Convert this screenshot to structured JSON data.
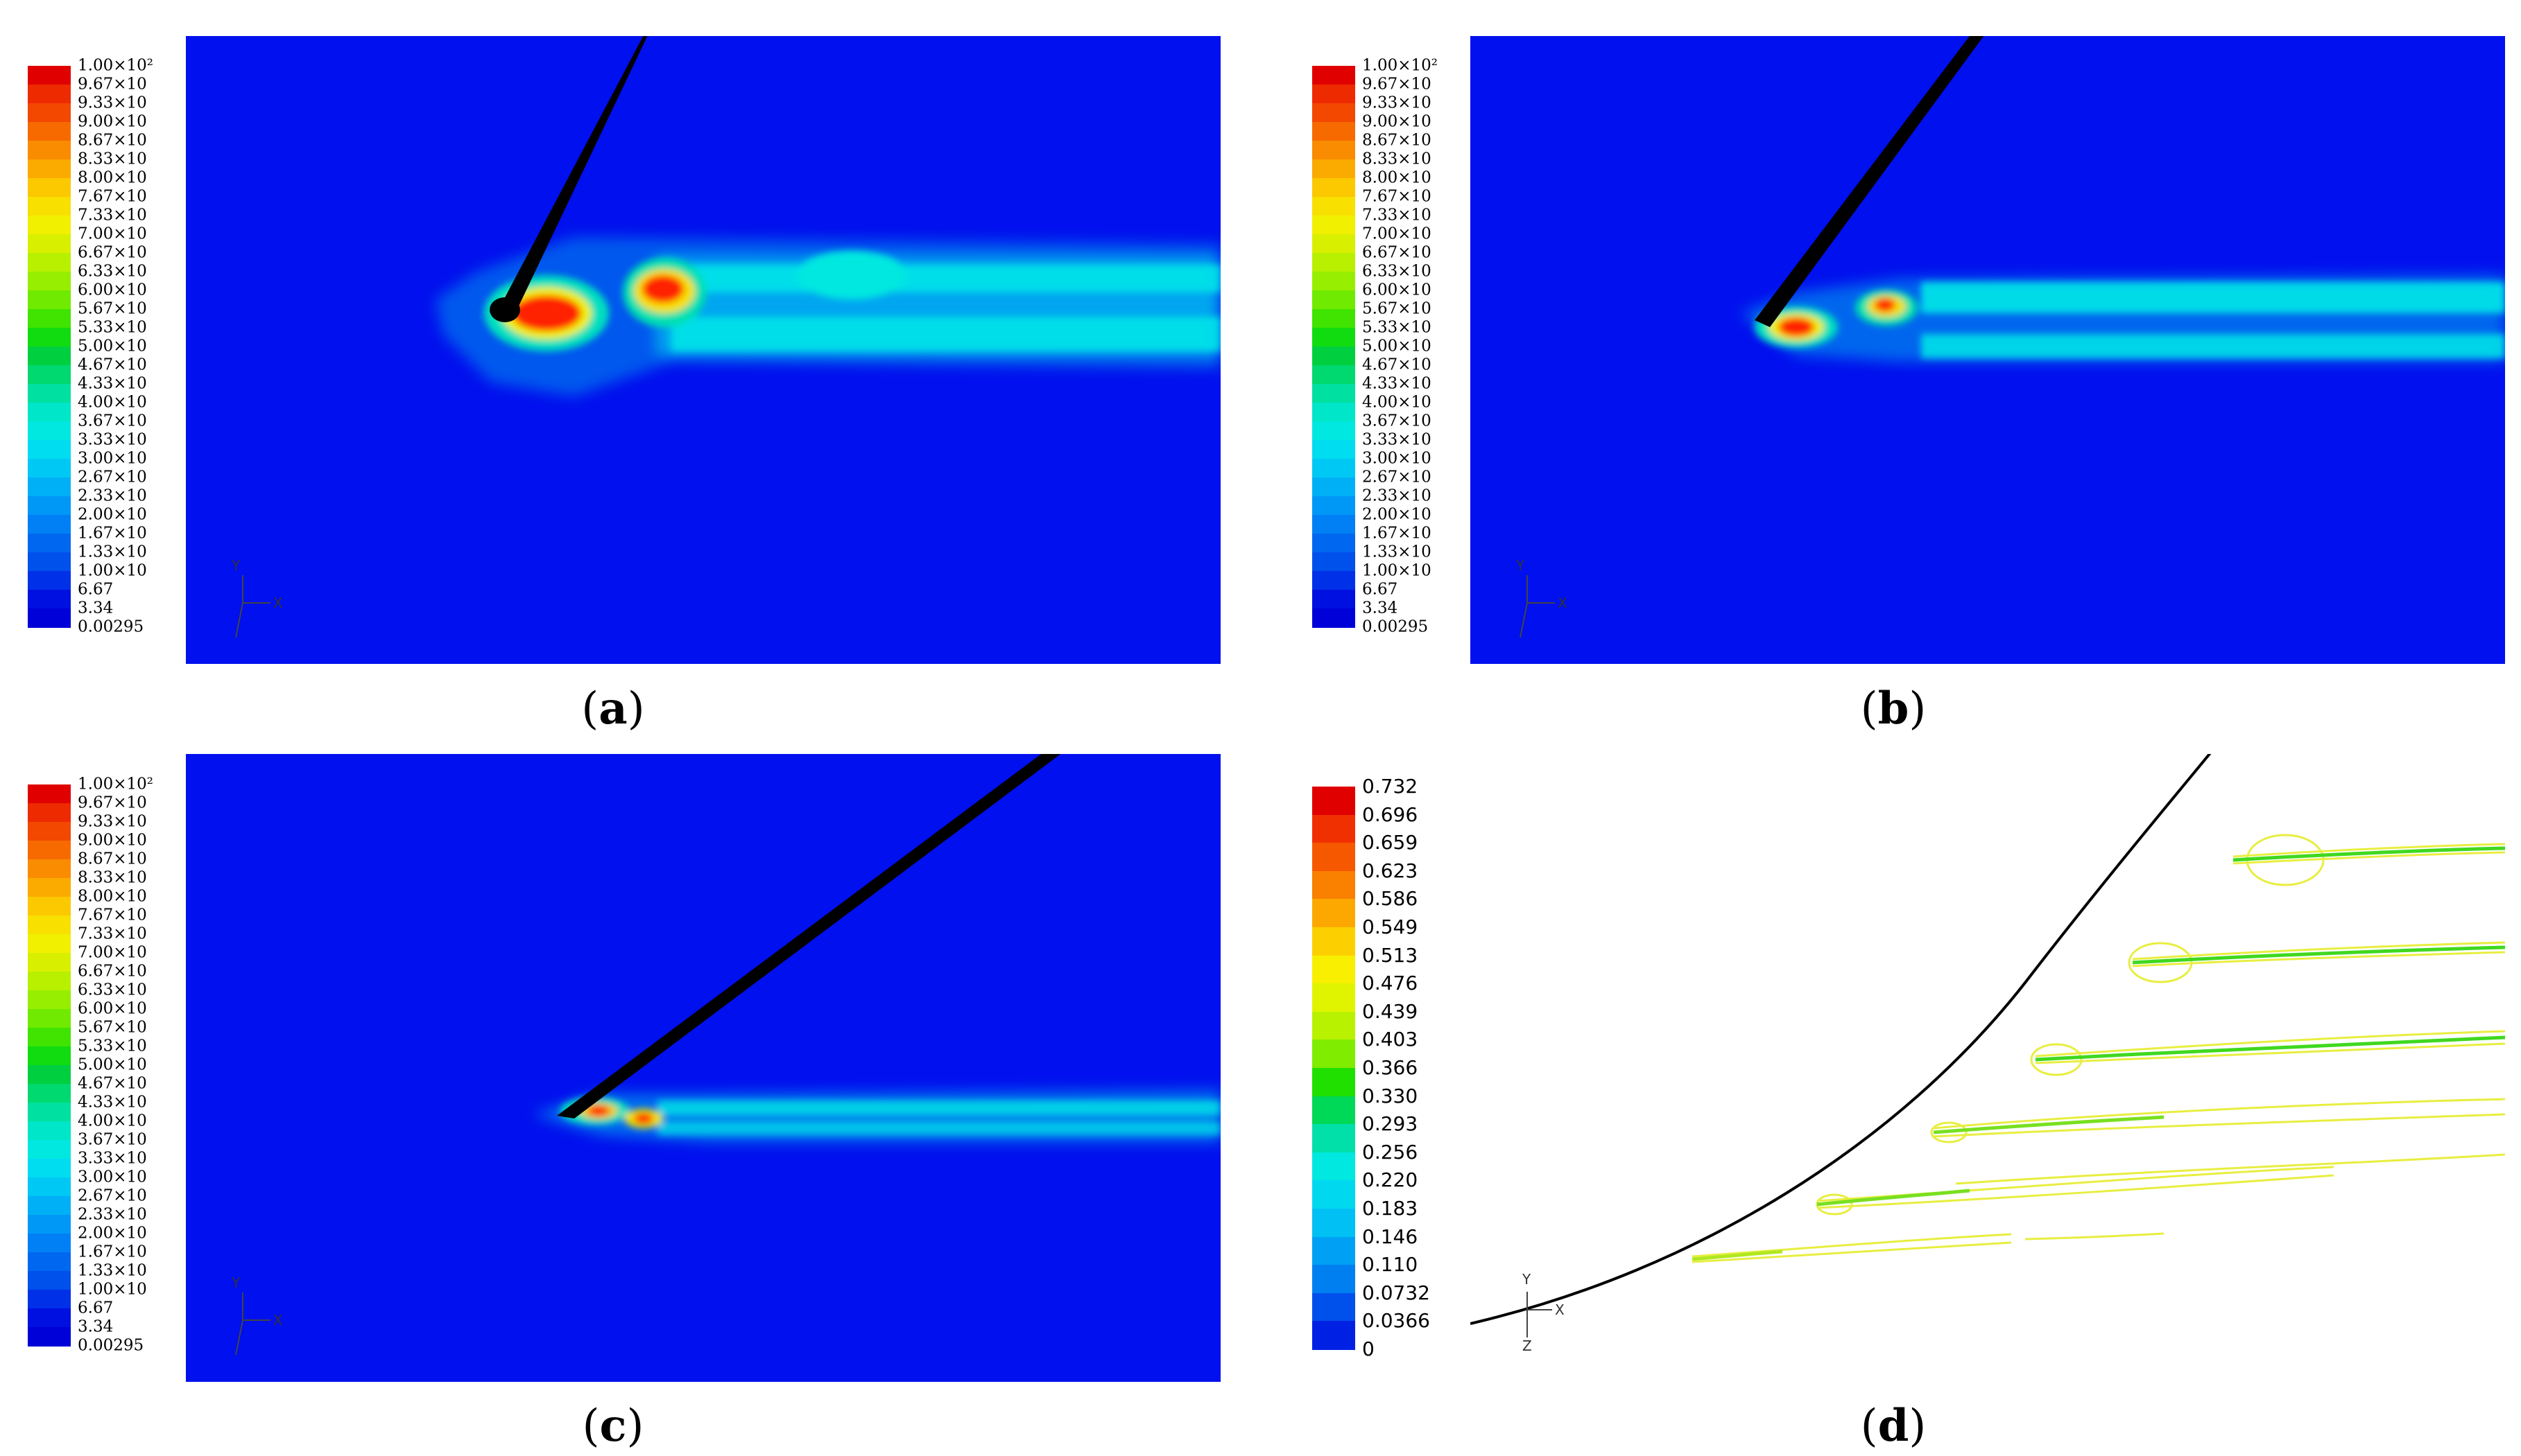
{
  "legend_contour": [
    "1.00×10²",
    "9.67×10",
    "9.33×10",
    "9.00×10",
    "8.67×10",
    "8.33×10",
    "8.00×10",
    "7.67×10",
    "7.33×10",
    "7.00×10",
    "6.67×10",
    "6.33×10",
    "6.00×10",
    "5.67×10",
    "5.33×10",
    "5.00×10",
    "4.67×10",
    "4.33×10",
    "4.00×10",
    "3.67×10",
    "3.33×10",
    "3.00×10",
    "2.67×10",
    "2.33×10",
    "2.00×10",
    "1.67×10",
    "1.33×10",
    "1.00×10",
    "6.67",
    "3.34",
    "0.00295"
  ],
  "legend_d": [
    "0.732",
    "0.696",
    "0.659",
    "0.623",
    "0.586",
    "0.549",
    "0.513",
    "0.476",
    "0.439",
    "0.403",
    "0.366",
    "0.330",
    "0.293",
    "0.256",
    "0.220",
    "0.183",
    "0.146",
    "0.110",
    "0.0732",
    "0.0366",
    "0"
  ],
  "colors_contour": [
    "#e00000",
    "#ee2a00",
    "#f24800",
    "#f66a00",
    "#f98c00",
    "#fbaa00",
    "#fcc800",
    "#f8e000",
    "#f0f000",
    "#d8f000",
    "#b8f000",
    "#98ee00",
    "#70ea00",
    "#40e400",
    "#10dc10",
    "#00d040",
    "#00d870",
    "#00e0a0",
    "#00e6c8",
    "#00e8e0",
    "#00dcf0",
    "#00c8f4",
    "#00b0f6",
    "#0098f6",
    "#0080f4",
    "#0068f0",
    "#0050ec",
    "#0030e8",
    "#0010e0",
    "#0000d8"
  ],
  "colors_d": [
    "#e00000",
    "#f03000",
    "#f65800",
    "#fa8000",
    "#fca800",
    "#fcd000",
    "#f8f000",
    "#e0f400",
    "#b8f200",
    "#80ec00",
    "#20e000",
    "#00d858",
    "#00e0a8",
    "#00e8e0",
    "#00d8f0",
    "#00c0f4",
    "#00a0f4",
    "#0080f0",
    "#0050ec",
    "#0020e4"
  ],
  "axis": {
    "y": "Y",
    "x": "X",
    "z": "Z"
  },
  "captions": {
    "a": {
      "open": "(",
      "letter": "a",
      "close": ")"
    },
    "b": {
      "open": "(",
      "letter": "b",
      "close": ")"
    },
    "c": {
      "open": "(",
      "letter": "c",
      "close": ")"
    },
    "d": {
      "open": "(",
      "letter": "d",
      "close": ")"
    }
  }
}
